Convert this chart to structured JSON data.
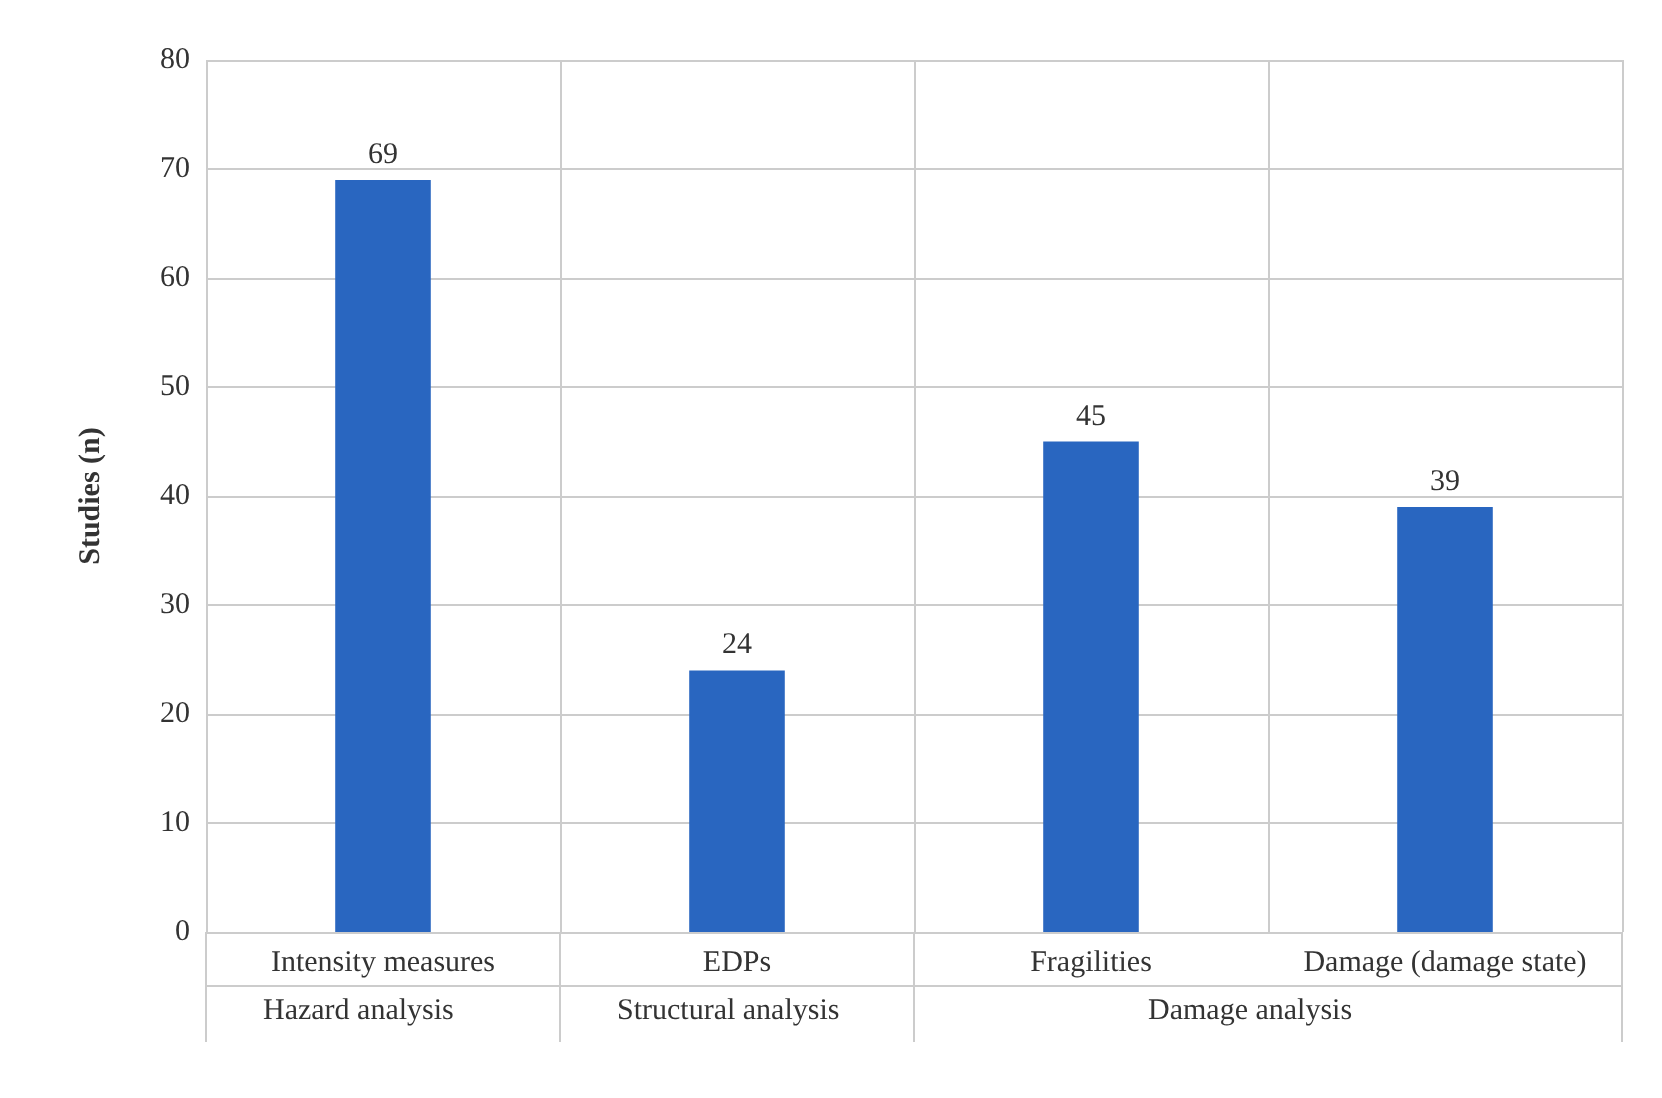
{
  "chart_data": {
    "type": "bar",
    "ylabel": "Studies (n)",
    "categories": [
      "Intensity measures",
      "EDPs",
      "Fragilities",
      "Damage (damage state)"
    ],
    "values": [
      69,
      24,
      45,
      39
    ],
    "color": "#2966c0",
    "ylim": [
      0,
      80
    ],
    "yticks": [
      0,
      10,
      20,
      30,
      40,
      50,
      60,
      70,
      80
    ],
    "grid": true,
    "data_labels": true,
    "annotations": [
      "Hazard analysis",
      "Structural analysis",
      "Damage analysis"
    ]
  }
}
